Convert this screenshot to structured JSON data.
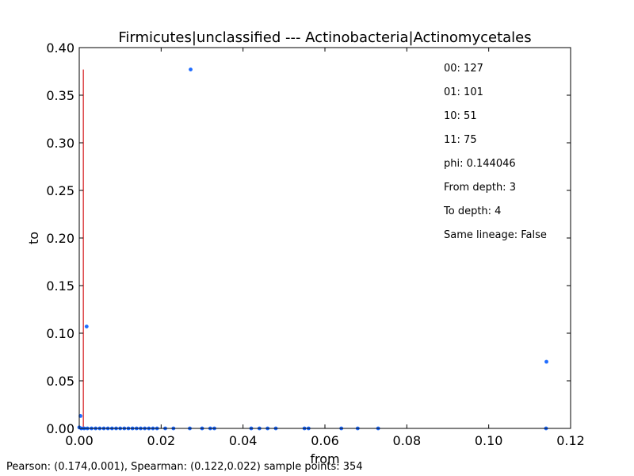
{
  "chart_data": {
    "type": "scatter",
    "title": "Firmicutes|unclassified --- Actinobacteria|Actinomycetales",
    "xlabel": "from",
    "ylabel": "to",
    "xlim": [
      0.0,
      0.12
    ],
    "ylim": [
      0.0,
      0.4
    ],
    "xticks": [
      "0.00",
      "0.02",
      "0.04",
      "0.06",
      "0.08",
      "0.10",
      "0.12"
    ],
    "yticks": [
      "0.00",
      "0.05",
      "0.10",
      "0.15",
      "0.20",
      "0.25",
      "0.30",
      "0.35",
      "0.40"
    ],
    "grid": false,
    "point_color": "#1f6cff",
    "threshold_line": {
      "color": "#d62728",
      "x": 0.001,
      "y_range": [
        0.0,
        0.377
      ]
    },
    "points": [
      {
        "x": 0.0272,
        "y": 0.377
      },
      {
        "x": 0.0018,
        "y": 0.107
      },
      {
        "x": 0.1141,
        "y": 0.07
      },
      {
        "x": 0.0003,
        "y": 0.013
      },
      {
        "x": 0.0,
        "y": 0.001
      },
      {
        "x": 0.0005,
        "y": 0.0
      },
      {
        "x": 0.0012,
        "y": 0.0
      },
      {
        "x": 0.002,
        "y": 0.0
      },
      {
        "x": 0.003,
        "y": 0.0
      },
      {
        "x": 0.004,
        "y": 0.0
      },
      {
        "x": 0.005,
        "y": 0.0
      },
      {
        "x": 0.006,
        "y": 0.0
      },
      {
        "x": 0.007,
        "y": 0.0
      },
      {
        "x": 0.008,
        "y": 0.0
      },
      {
        "x": 0.009,
        "y": 0.0
      },
      {
        "x": 0.01,
        "y": 0.0
      },
      {
        "x": 0.011,
        "y": 0.0
      },
      {
        "x": 0.012,
        "y": 0.0
      },
      {
        "x": 0.013,
        "y": 0.0
      },
      {
        "x": 0.014,
        "y": 0.0
      },
      {
        "x": 0.015,
        "y": 0.0
      },
      {
        "x": 0.016,
        "y": 0.0
      },
      {
        "x": 0.017,
        "y": 0.0
      },
      {
        "x": 0.018,
        "y": 0.0
      },
      {
        "x": 0.019,
        "y": 0.0
      },
      {
        "x": 0.021,
        "y": 0.0
      },
      {
        "x": 0.023,
        "y": 0.0
      },
      {
        "x": 0.027,
        "y": 0.0
      },
      {
        "x": 0.03,
        "y": 0.0
      },
      {
        "x": 0.032,
        "y": 0.0
      },
      {
        "x": 0.033,
        "y": 0.0
      },
      {
        "x": 0.042,
        "y": 0.0
      },
      {
        "x": 0.044,
        "y": 0.0
      },
      {
        "x": 0.046,
        "y": 0.0
      },
      {
        "x": 0.048,
        "y": 0.0
      },
      {
        "x": 0.055,
        "y": 0.0
      },
      {
        "x": 0.056,
        "y": 0.0
      },
      {
        "x": 0.064,
        "y": 0.0
      },
      {
        "x": 0.068,
        "y": 0.0
      },
      {
        "x": 0.073,
        "y": 0.0
      },
      {
        "x": 0.114,
        "y": 0.0
      }
    ],
    "annotations": [
      "00: 127",
      "01: 101",
      "10: 51",
      "11: 75",
      "phi: 0.144046",
      "From depth: 3",
      "To depth: 4",
      "Same lineage: False"
    ]
  },
  "footer": {
    "stats": "Pearson: (0.174,0.001), Spearman: (0.122,0.022) sample points: 354"
  }
}
